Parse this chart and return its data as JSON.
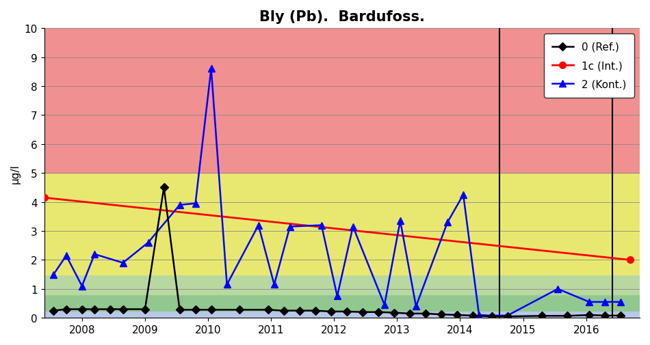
{
  "title": "Bly (Pb).  Bardufoss.",
  "ylabel": "µg/l",
  "ylim": [
    0,
    10
  ],
  "xlim": [
    2007.4,
    2016.85
  ],
  "xticks": [
    2008,
    2009,
    2010,
    2011,
    2012,
    2013,
    2014,
    2015,
    2016
  ],
  "background_bands": [
    {
      "ymin": 0,
      "ymax": 0.25,
      "color": "#b8c8e8",
      "alpha": 1.0
    },
    {
      "ymin": 0.25,
      "ymax": 0.8,
      "color": "#90c890",
      "alpha": 1.0
    },
    {
      "ymin": 0.8,
      "ymax": 1.5,
      "color": "#b8d8a0",
      "alpha": 1.0
    },
    {
      "ymin": 1.5,
      "ymax": 5.0,
      "color": "#e8e870",
      "alpha": 1.0
    },
    {
      "ymin": 5.0,
      "ymax": 10,
      "color": "#f09090",
      "alpha": 1.0
    }
  ],
  "series_ref": {
    "label": "0 (Ref.)",
    "color": "#000000",
    "marker": "D",
    "x": [
      2007.55,
      2007.75,
      2008.0,
      2008.2,
      2008.45,
      2008.65,
      2009.0,
      2009.3,
      2009.55,
      2009.8,
      2010.05,
      2010.5,
      2010.95,
      2011.2,
      2011.45,
      2011.7,
      2011.95,
      2012.2,
      2012.45,
      2012.7,
      2012.95,
      2013.2,
      2013.45,
      2013.7,
      2013.95,
      2014.2,
      2014.5,
      2014.75,
      2015.3,
      2015.7,
      2016.05,
      2016.3,
      2016.55
    ],
    "y": [
      0.25,
      0.3,
      0.3,
      0.3,
      0.3,
      0.3,
      0.3,
      4.5,
      0.28,
      0.28,
      0.28,
      0.28,
      0.28,
      0.25,
      0.25,
      0.25,
      0.22,
      0.22,
      0.2,
      0.2,
      0.18,
      0.15,
      0.15,
      0.12,
      0.1,
      0.08,
      0.05,
      0.05,
      0.07,
      0.07,
      0.1,
      0.08,
      0.08
    ]
  },
  "series_1c": {
    "label": "1c (Int.)",
    "color": "#ff0000",
    "marker": "o",
    "x": [
      2007.4,
      2016.7
    ],
    "y": [
      4.15,
      2.0
    ]
  },
  "series_2": {
    "label": "2 (Kont.)",
    "color": "#0000ff",
    "marker": "^",
    "x": [
      2007.55,
      2007.75,
      2008.0,
      2008.2,
      2008.65,
      2009.05,
      2009.55,
      2009.8,
      2010.05,
      2010.3,
      2010.8,
      2011.05,
      2011.3,
      2011.8,
      2012.05,
      2012.3,
      2012.8,
      2013.05,
      2013.3,
      2013.8,
      2014.05,
      2014.3,
      2014.5,
      2014.75,
      2015.55,
      2016.05,
      2016.3,
      2016.55
    ],
    "y": [
      1.5,
      2.15,
      1.1,
      2.2,
      1.9,
      2.6,
      3.9,
      3.95,
      8.6,
      1.15,
      3.2,
      1.15,
      3.15,
      3.2,
      0.75,
      3.15,
      0.45,
      3.35,
      0.4,
      3.3,
      4.25,
      0.1,
      0.08,
      0.08,
      1.0,
      0.55,
      0.55,
      0.55
    ]
  },
  "vlines_x": [
    2014.62,
    2016.42
  ],
  "vline_color": "#000000",
  "vline_linewidth": 1.5,
  "title_fontsize": 15,
  "axis_fontsize": 11,
  "tick_fontsize": 11,
  "legend_fontsize": 11,
  "legend_loc": "upper right",
  "figsize": [
    9.5,
    5.06
  ],
  "dpi": 100
}
